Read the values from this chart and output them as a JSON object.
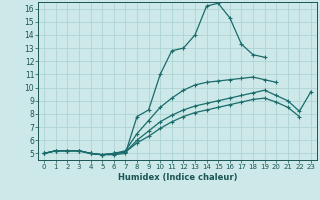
{
  "xlabel": "Humidex (Indice chaleur)",
  "xlim": [
    -0.5,
    23.5
  ],
  "ylim": [
    4.5,
    16.5
  ],
  "xticks": [
    0,
    1,
    2,
    3,
    4,
    5,
    6,
    7,
    8,
    9,
    10,
    11,
    12,
    13,
    14,
    15,
    16,
    17,
    18,
    19,
    20,
    21,
    22,
    23
  ],
  "yticks": [
    5,
    6,
    7,
    8,
    9,
    10,
    11,
    12,
    13,
    14,
    15,
    16
  ],
  "bg_color": "#cce8e8",
  "line_color": "#1a6b6b",
  "grid_color": "#afd4d4",
  "curves": [
    {
      "x": [
        0,
        1,
        2,
        3,
        4,
        5,
        6,
        7,
        8,
        9,
        10,
        11,
        12,
        13,
        14,
        15,
        16,
        17,
        18,
        19
      ],
      "y": [
        5.0,
        5.2,
        5.2,
        5.2,
        5.0,
        4.9,
        4.9,
        5.0,
        7.8,
        8.3,
        11.0,
        12.8,
        13.0,
        14.0,
        16.2,
        16.4,
        15.3,
        13.3,
        12.5,
        12.3
      ]
    },
    {
      "x": [
        0,
        1,
        2,
        3,
        4,
        5,
        6,
        7,
        8,
        9,
        10,
        11,
        12,
        13,
        14,
        15,
        16,
        17,
        18,
        19,
        20
      ],
      "y": [
        5.0,
        5.2,
        5.2,
        5.2,
        5.0,
        4.9,
        5.0,
        5.2,
        6.5,
        7.5,
        8.5,
        9.2,
        9.8,
        10.2,
        10.4,
        10.5,
        10.6,
        10.7,
        10.8,
        10.6,
        10.4
      ]
    },
    {
      "x": [
        0,
        1,
        2,
        3,
        4,
        5,
        6,
        7,
        8,
        9,
        10,
        11,
        12,
        13,
        14,
        15,
        16,
        17,
        18,
        19,
        20,
        21,
        22,
        23
      ],
      "y": [
        5.0,
        5.2,
        5.2,
        5.2,
        5.0,
        4.9,
        5.0,
        5.1,
        6.0,
        6.7,
        7.4,
        7.9,
        8.3,
        8.6,
        8.8,
        9.0,
        9.2,
        9.4,
        9.6,
        9.8,
        9.4,
        9.0,
        8.2,
        9.7
      ]
    },
    {
      "x": [
        0,
        1,
        2,
        3,
        4,
        5,
        6,
        7,
        8,
        9,
        10,
        11,
        12,
        13,
        14,
        15,
        16,
        17,
        18,
        19,
        20,
        21,
        22
      ],
      "y": [
        5.0,
        5.2,
        5.2,
        5.2,
        5.0,
        4.9,
        5.0,
        5.1,
        5.8,
        6.3,
        6.9,
        7.4,
        7.8,
        8.1,
        8.3,
        8.5,
        8.7,
        8.9,
        9.1,
        9.2,
        8.9,
        8.5,
        7.8
      ]
    }
  ]
}
